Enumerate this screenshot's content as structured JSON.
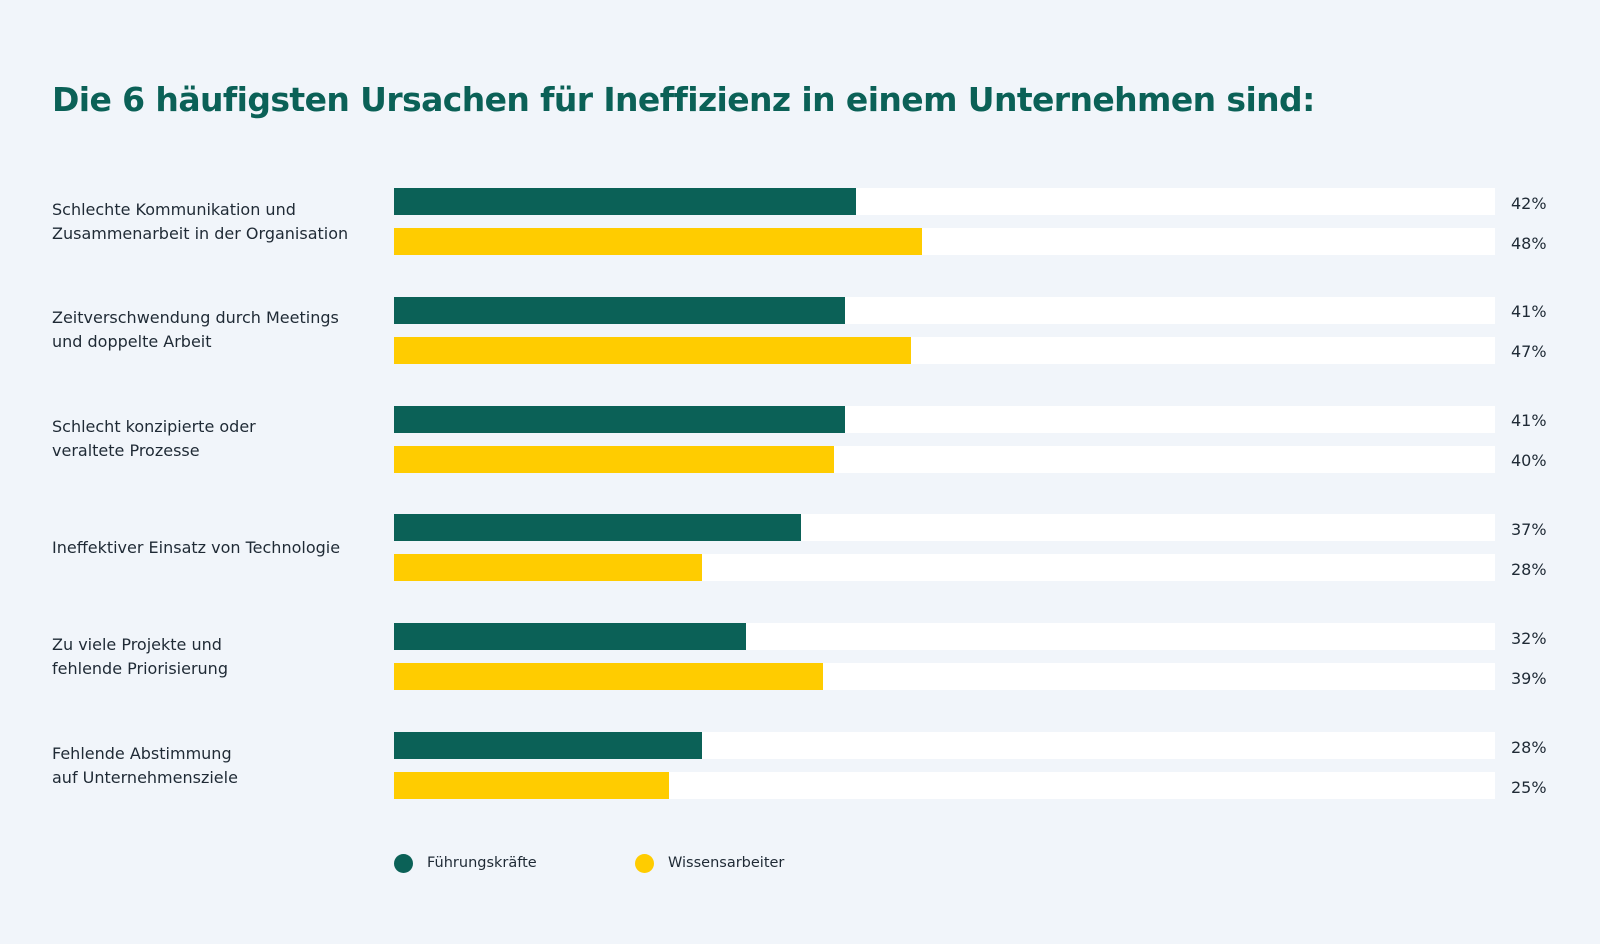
{
  "chart_data": {
    "type": "bar",
    "orientation": "horizontal",
    "title": "Die 6 häufigsten Ursachen für Ineffizienz in einem Unternehmen sind:",
    "categories": [
      "Schlechte Kommunikation und\nZusammenarbeit in der Organisation",
      "Zeitverschwendung durch Meetings\nund doppelte Arbeit",
      "Schlecht konzipierte oder\nveraltete Prozesse",
      "Ineffektiver Einsatz von Technologie",
      "Zu viele Projekte und\nfehlende Priorisierung",
      "Fehlende Abstimmung\nauf Unternehmensziele"
    ],
    "series": [
      {
        "name": "Führungskräfte",
        "color": "#0b6157",
        "values": [
          42,
          41,
          41,
          37,
          32,
          28
        ],
        "labels": [
          "42%",
          "41%",
          "41%",
          "37%",
          "32%",
          "28%"
        ]
      },
      {
        "name": "Wissensarbeiter",
        "color": "#ffcc00",
        "values": [
          48,
          47,
          40,
          28,
          39,
          25
        ],
        "labels": [
          "48%",
          "47%",
          "40%",
          "28%",
          "39%",
          "25%"
        ]
      }
    ],
    "xlim": [
      0,
      100
    ],
    "value_unit": "%",
    "grid": false,
    "legend_position": "bottom-left"
  }
}
